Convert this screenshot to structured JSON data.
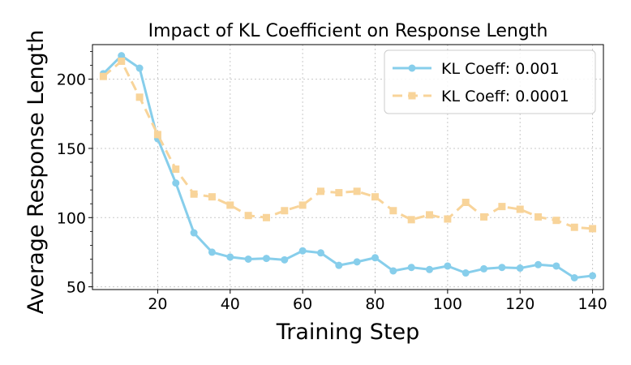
{
  "chart_data": {
    "type": "line",
    "title": "Impact of KL Coefficient on Response Length",
    "xlabel": "Training Step",
    "ylabel": "Average Response Length",
    "xlim": [
      2,
      143
    ],
    "ylim": [
      48,
      225
    ],
    "xticks": [
      20,
      40,
      60,
      80,
      100,
      120,
      140
    ],
    "yticks": [
      50,
      100,
      150,
      200
    ],
    "grid": true,
    "legend_position": "top-right",
    "x": [
      5,
      10,
      15,
      20,
      25,
      30,
      35,
      40,
      45,
      50,
      55,
      60,
      65,
      70,
      75,
      80,
      85,
      90,
      95,
      100,
      105,
      110,
      115,
      120,
      125,
      130,
      135,
      140
    ],
    "series": [
      {
        "name": "KL Coeff: 0.001",
        "color": "#87ceeb",
        "line_style": "solid",
        "marker": "circle",
        "values": [
          204,
          217,
          208,
          157,
          125,
          89,
          75,
          71.5,
          70,
          70.5,
          69.5,
          76,
          74.5,
          65.5,
          68,
          71,
          61.5,
          64,
          62.5,
          65,
          60,
          63,
          64,
          63.5,
          66,
          65,
          56.5,
          58
        ]
      },
      {
        "name": "KL Coeff: 0.0001",
        "color": "#f8d49a",
        "line_style": "dashed",
        "marker": "square",
        "values": [
          202,
          213,
          187,
          160,
          135,
          117,
          115,
          109,
          101.5,
          100,
          105,
          109,
          119,
          118,
          119,
          115,
          105,
          98.5,
          102,
          99,
          111,
          100.5,
          108,
          106,
          100.5,
          98,
          93,
          92
        ]
      }
    ]
  }
}
